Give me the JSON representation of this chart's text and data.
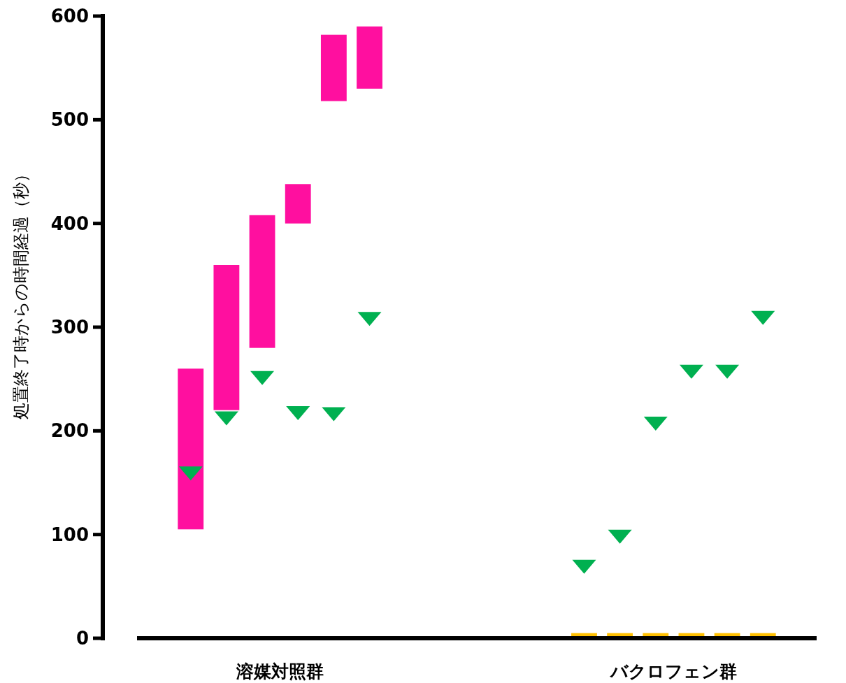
{
  "chart_data": {
    "type": "bar",
    "ylabel": "処置終了時からの時間経過（秒）",
    "categories": [
      null,
      null,
      null,
      null,
      null,
      null,
      null,
      null,
      null,
      null,
      null,
      null,
      null,
      null,
      null,
      null,
      null,
      null,
      null
    ],
    "ylim": [
      0,
      600
    ],
    "yticks": [
      0,
      100,
      200,
      300,
      400,
      500,
      600
    ],
    "annotations": [
      "溶媒対照群",
      "バクロフェン群"
    ],
    "series": [
      {
        "type": "bar",
        "colors": [
          null,
          "#ff0f9f",
          "#ff0f9f",
          "#ff0f9f",
          "#ff0f9f",
          "#ff0f9f",
          "#ff0f9f",
          null,
          null,
          null,
          null,
          null,
          "#ffc000",
          "#ffc000",
          "#ffc000",
          "#ffc000",
          "#ffc000",
          "#ffc000",
          null
        ],
        "base": [
          null,
          105,
          220,
          280,
          400,
          518,
          530,
          null,
          null,
          null,
          null,
          null,
          0,
          0,
          0,
          0,
          0,
          0,
          null
        ],
        "values": [
          null,
          155,
          140,
          128,
          38,
          64,
          60,
          null,
          null,
          null,
          null,
          null,
          5,
          5,
          5,
          5,
          5,
          5,
          null
        ]
      },
      {
        "type": "scatter",
        "color": "#00b050",
        "marker": "triangle",
        "values": [
          null,
          159,
          212,
          251,
          217,
          216,
          308,
          null,
          null,
          null,
          null,
          null,
          69,
          98,
          207,
          257,
          257,
          309,
          null
        ]
      }
    ]
  }
}
